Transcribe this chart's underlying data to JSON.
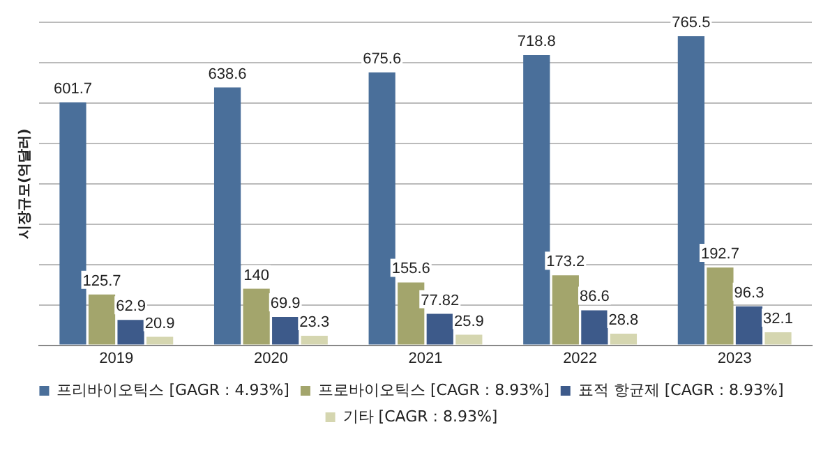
{
  "chart_data": {
    "type": "bar",
    "ylabel": "시장규모(억달러)",
    "categories": [
      "2019",
      "2020",
      "2021",
      "2022",
      "2023"
    ],
    "series": [
      {
        "name": "프리바이오틱스 [GAGR : 4.93%]",
        "color": "#4a6f9a",
        "values": [
          601.7,
          638.6,
          675.6,
          718.8,
          765.5
        ]
      },
      {
        "name": "프로바이오틱스 [CAGR : 8.93%]",
        "color": "#a3a56c",
        "values": [
          125.7,
          140,
          155.6,
          173.2,
          192.7
        ]
      },
      {
        "name": "표적 항균제 [CAGR : 8.93%]",
        "color": "#3d5a8a",
        "values": [
          62.9,
          69.9,
          77.82,
          86.6,
          96.3
        ]
      },
      {
        "name": "기타 [CAGR : 8.93%]",
        "color": "#d5d6b0",
        "values": [
          20.9,
          23.3,
          25.9,
          28.8,
          32.1
        ]
      }
    ],
    "ylim": [
      0,
      800
    ],
    "yticks": [
      {
        "value": 0,
        "label": null
      },
      {
        "value": 100,
        "label": null
      },
      {
        "value": 200,
        "label": null
      },
      {
        "value": 300,
        "label": null
      },
      {
        "value": 400,
        "label": null
      },
      {
        "value": 500,
        "label": null
      },
      {
        "value": 600,
        "label": null
      },
      {
        "value": 700,
        "label": null
      },
      {
        "value": 800,
        "label": null
      }
    ],
    "grid": "y",
    "legend": "bottom",
    "tick_labels": "x",
    "data_labels": true
  }
}
